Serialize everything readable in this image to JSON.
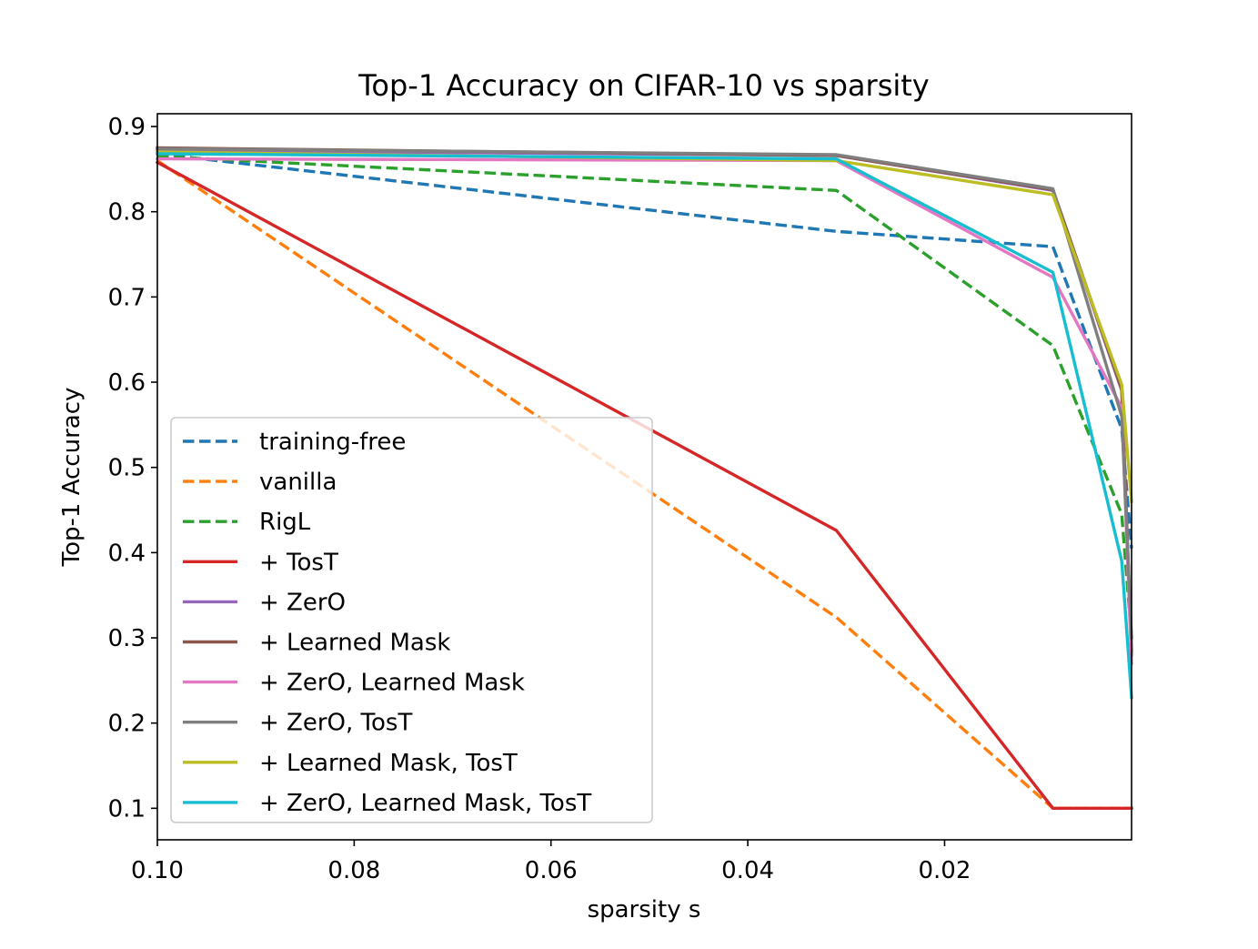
{
  "chart_data": {
    "type": "line",
    "title": "Top-1 Accuracy on CIFAR-10 vs sparsity",
    "xlabel": "sparsity s",
    "ylabel": "Top-1 Accuracy",
    "xlim": [
      0.1,
      0.001
    ],
    "ylim": [
      0.063,
      0.915
    ],
    "x_inverted": true,
    "grid": false,
    "legend_position": "lower-left",
    "x": [
      0.1,
      0.031,
      0.009,
      0.002,
      0.001
    ],
    "xticks": [
      {
        "value": 0.1,
        "label": "0.10"
      },
      {
        "value": 0.08,
        "label": "0.08"
      },
      {
        "value": 0.06,
        "label": "0.06"
      },
      {
        "value": 0.04,
        "label": "0.04"
      },
      {
        "value": 0.02,
        "label": "0.02"
      }
    ],
    "yticks": [
      {
        "value": 0.1,
        "label": "0.1"
      },
      {
        "value": 0.2,
        "label": "0.2"
      },
      {
        "value": 0.3,
        "label": "0.3"
      },
      {
        "value": 0.4,
        "label": "0.4"
      },
      {
        "value": 0.5,
        "label": "0.5"
      },
      {
        "value": 0.6,
        "label": "0.6"
      },
      {
        "value": 0.7,
        "label": "0.7"
      },
      {
        "value": 0.8,
        "label": "0.8"
      },
      {
        "value": 0.9,
        "label": "0.9"
      }
    ],
    "series": [
      {
        "name": "training-free",
        "color": "#1f77b4",
        "dashed": true,
        "values": [
          0.868,
          0.777,
          0.759,
          0.545,
          0.405
        ]
      },
      {
        "name": "vanilla",
        "color": "#ff7f0e",
        "dashed": true,
        "values": [
          0.86,
          0.324,
          0.1,
          0.1,
          0.1
        ]
      },
      {
        "name": "RigL",
        "color": "#2ca02c",
        "dashed": true,
        "values": [
          0.865,
          0.825,
          0.643,
          0.445,
          0.3
        ]
      },
      {
        "name": "+ TosT",
        "color": "#d62728",
        "dashed": false,
        "values": [
          0.858,
          0.426,
          0.1,
          0.1,
          0.1
        ]
      },
      {
        "name": "+ ZerO",
        "color": "#9467bd",
        "dashed": false,
        "values": [
          0.872,
          0.866,
          0.825,
          0.59,
          0.28
        ]
      },
      {
        "name": "+ Learned Mask",
        "color": "#8c564b",
        "dashed": false,
        "values": [
          0.875,
          0.866,
          0.826,
          0.592,
          0.285
        ]
      },
      {
        "name": "+ ZerO, Learned Mask",
        "color": "#e377c2",
        "dashed": false,
        "values": [
          0.862,
          0.86,
          0.723,
          0.57,
          0.27
        ]
      },
      {
        "name": "+ ZerO, TosT",
        "color": "#7f7f7f",
        "dashed": false,
        "values": [
          0.874,
          0.867,
          0.827,
          0.56,
          0.3
        ]
      },
      {
        "name": "+ Learned Mask, TosT",
        "color": "#bcbd22",
        "dashed": false,
        "values": [
          0.87,
          0.86,
          0.82,
          0.597,
          0.46
        ]
      },
      {
        "name": "+ ZerO, Learned Mask, TosT",
        "color": "#17becf",
        "dashed": false,
        "values": [
          0.868,
          0.862,
          0.729,
          0.39,
          0.23
        ]
      }
    ]
  }
}
